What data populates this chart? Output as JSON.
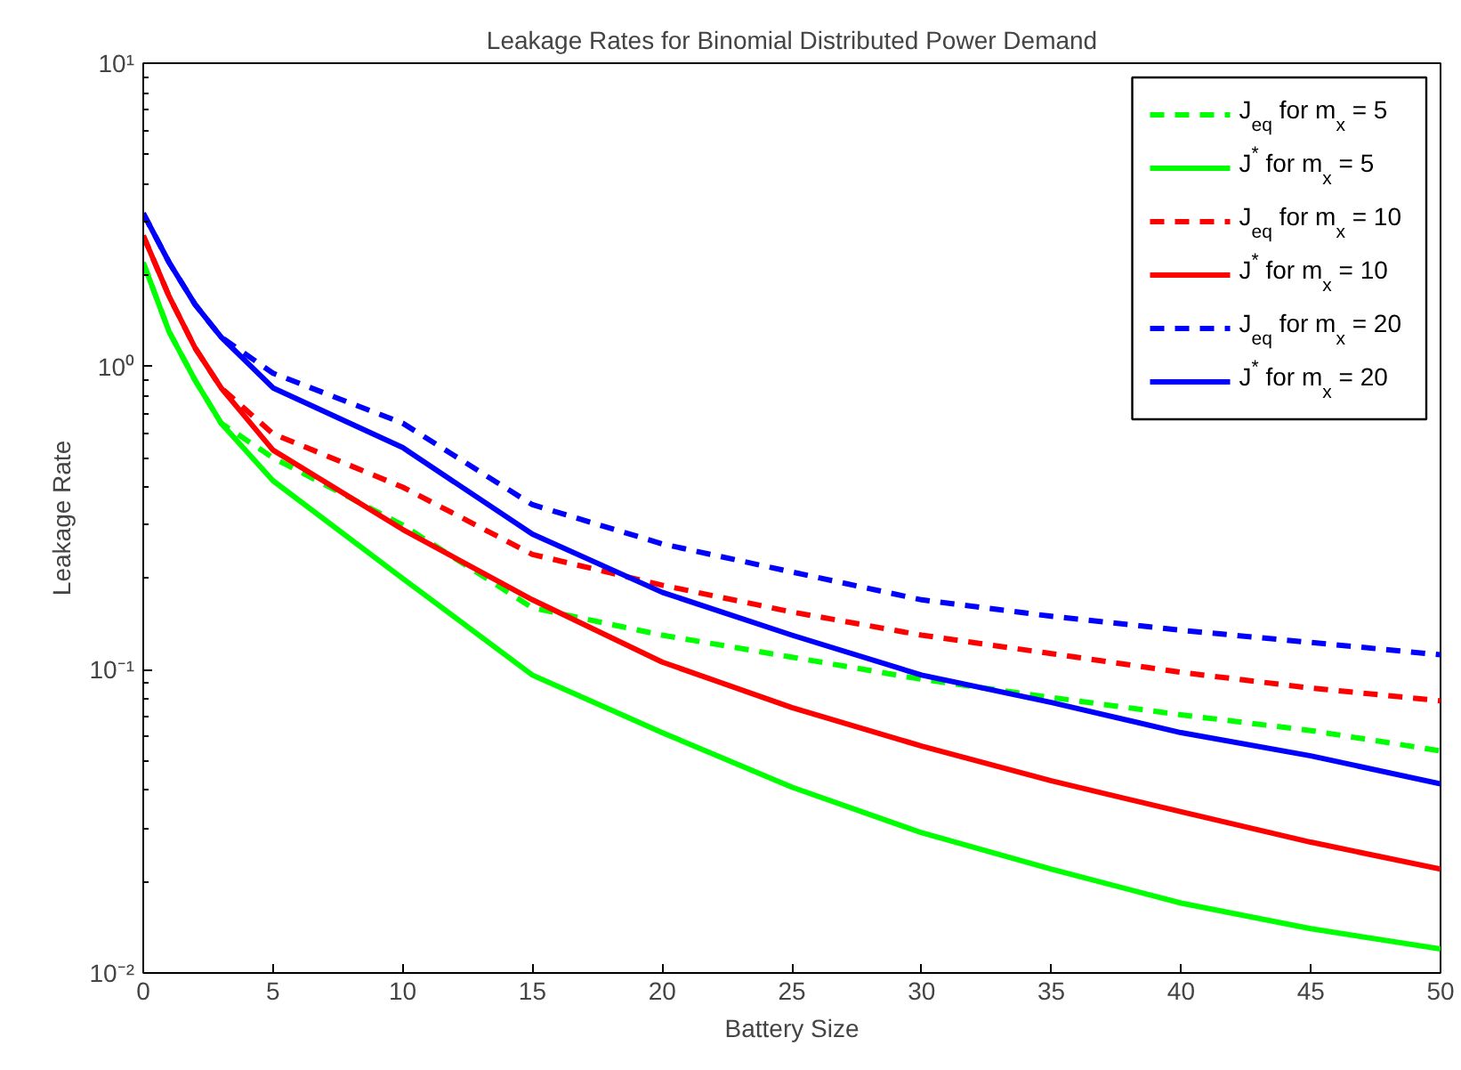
{
  "chart_data": {
    "type": "line",
    "title": "Leakage Rates for Binomial Distributed Power Demand",
    "xlabel": "Battery Size",
    "ylabel": "Leakage Rate",
    "x": [
      0,
      1,
      2,
      3,
      5,
      10,
      15,
      20,
      25,
      30,
      35,
      40,
      45,
      50
    ],
    "series": [
      {
        "name": "J$_{eq}$ for m$_{x}$ = 5",
        "color": "#00ff00",
        "line_style": "dashed",
        "values": [
          2.2,
          1.3,
          0.9,
          0.65,
          0.5,
          0.3,
          0.16,
          0.13,
          0.11,
          0.093,
          0.081,
          0.071,
          0.063,
          0.054
        ]
      },
      {
        "name": "J$^{*}$ for m$_{x}$ = 5",
        "color": "#00ff00",
        "line_style": "solid",
        "values": [
          2.2,
          1.3,
          0.9,
          0.65,
          0.42,
          0.2,
          0.096,
          0.062,
          0.041,
          0.029,
          0.022,
          0.017,
          0.014,
          0.012
        ]
      },
      {
        "name": "J$_{eq}$ for m$_{x}$ = 10",
        "color": "#ff0000",
        "line_style": "dashed",
        "values": [
          2.7,
          1.7,
          1.15,
          0.85,
          0.6,
          0.4,
          0.24,
          0.19,
          0.155,
          0.13,
          0.113,
          0.098,
          0.087,
          0.079
        ]
      },
      {
        "name": "J$^{*}$ for m$_{x}$ = 10",
        "color": "#ff0000",
        "line_style": "solid",
        "values": [
          2.7,
          1.7,
          1.15,
          0.85,
          0.53,
          0.29,
          0.17,
          0.106,
          0.075,
          0.056,
          0.043,
          0.034,
          0.027,
          0.022
        ]
      },
      {
        "name": "J$_{eq}$ for m$_{x}$ = 20",
        "color": "#0000ff",
        "line_style": "dashed",
        "values": [
          3.2,
          2.2,
          1.6,
          1.25,
          0.95,
          0.65,
          0.35,
          0.26,
          0.21,
          0.17,
          0.15,
          0.135,
          0.123,
          0.112
        ]
      },
      {
        "name": "J$^{*}$ for m$_{x}$ = 20",
        "color": "#0000ff",
        "line_style": "solid",
        "values": [
          3.2,
          2.2,
          1.6,
          1.25,
          0.85,
          0.54,
          0.28,
          0.18,
          0.13,
          0.096,
          0.078,
          0.062,
          0.052,
          0.042
        ]
      }
    ],
    "log": "y",
    "xlim": [
      0,
      50
    ],
    "xticks": [
      0,
      5,
      10,
      15,
      20,
      25,
      30,
      35,
      40,
      45,
      50
    ],
    "ylim": [
      0.01,
      10
    ],
    "yticks": [
      {
        "value": 0.01,
        "label": "10⁻²"
      },
      {
        "value": 0.1,
        "label": "10⁻¹"
      },
      {
        "value": 1,
        "label": "10⁰"
      },
      {
        "value": 10,
        "label": "10¹"
      }
    ],
    "grid": false,
    "legend": "top right"
  }
}
